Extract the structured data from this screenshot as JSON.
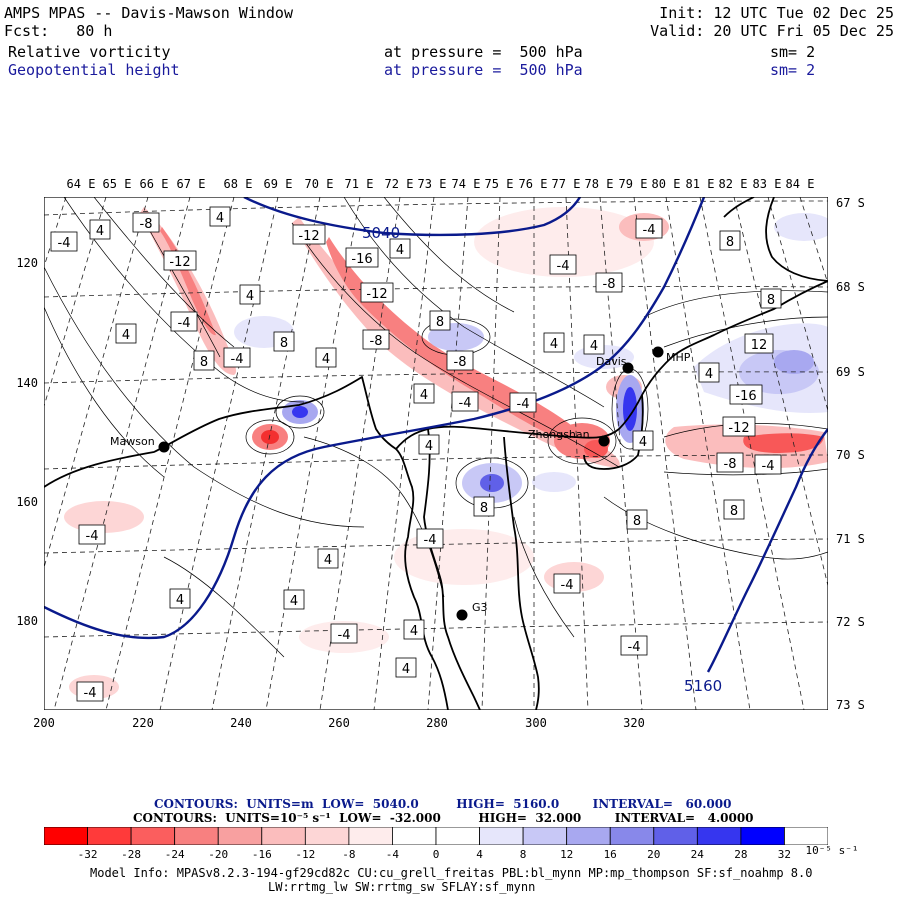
{
  "header": {
    "title": "AMPS MPAS -- Davis-Mawson Window",
    "forecast": "Fcst:   80 h",
    "init": "Init: 12 UTC Tue 02 Dec 25",
    "valid": "Valid: 20 UTC Fri 05 Dec 25",
    "field1": {
      "name": "Relative vorticity",
      "level": "at pressure =  500 hPa",
      "smooth": "sm= 2"
    },
    "field2": {
      "name": "Geopotential height",
      "level": "at pressure =  500 hPa",
      "smooth": "sm= 2"
    }
  },
  "axes": {
    "top_longitudes": [
      "64 E",
      "65 E",
      "66 E",
      "67 E",
      "68 E",
      "69 E",
      "70 E",
      "71 E",
      "72 E",
      "73 E",
      "74 E",
      "75 E",
      "76 E",
      "77 E",
      "78 E",
      "79 E",
      "80 E",
      "81 E",
      "82 E",
      "83 E",
      "84 E"
    ],
    "right_latitudes": [
      "67 S",
      "68 S",
      "69 S",
      "70 S",
      "71 S",
      "72 S",
      "73 S"
    ],
    "bottom_ticks": [
      "200",
      "220",
      "240",
      "260",
      "280",
      "300",
      "320"
    ],
    "left_ticks": [
      "120",
      "140",
      "160",
      "180"
    ]
  },
  "stations": [
    {
      "name": "Mawson",
      "lon": 62.9,
      "lat": -67.6
    },
    {
      "name": "Davis",
      "lon": 77.97,
      "lat": -68.58
    },
    {
      "name": "Zhongshan",
      "lon": 76.37,
      "lat": -69.37
    },
    {
      "name": "G3",
      "lon": 76.9,
      "lat": -71.8
    },
    {
      "name": "MHP",
      "lon": 79.1,
      "lat": -68.9
    }
  ],
  "height_labels": [
    "5040",
    "5160"
  ],
  "vort_labels": [
    "-4",
    "4",
    "-8",
    "4",
    "-12",
    "4",
    "-4",
    "4",
    "8",
    "-4",
    "8",
    "4",
    "-12",
    "-16",
    "4",
    "-12",
    "8",
    "-8",
    "-8",
    "4",
    "-4",
    "4",
    "-4",
    "4",
    "-4",
    "-8",
    "-4",
    "8",
    "8",
    "12",
    "4",
    "-16",
    "4",
    "-12",
    "-8",
    "-4",
    "4",
    "8",
    "8",
    "8",
    "-4",
    "-4",
    "4",
    "-4",
    "-4",
    "4",
    "4",
    "-4",
    "4",
    "4",
    "-4"
  ],
  "contour_info": {
    "height": "CONTOURS:  UNITS=m  LOW=  5040.0         HIGH=  5160.0        INTERVAL=   60.000",
    "vorticity": "CONTOURS:  UNITS=10⁻⁵ s⁻¹  LOW=  -32.000         HIGH=  32.000        INTERVAL=   4.0000"
  },
  "colorbar": {
    "labels": [
      "-32",
      "-28",
      "-24",
      "-20",
      "-16",
      "-12",
      "-8",
      "-4",
      "0",
      "4",
      "8",
      "12",
      "16",
      "20",
      "24",
      "28",
      "32"
    ],
    "unit": "10⁻⁵ s⁻¹",
    "colors": [
      "#ff0000",
      "#ff3a3a",
      "#fb5e5e",
      "#f88080",
      "#f8a0a0",
      "#fbbdbd",
      "#fdd6d6",
      "#feecec",
      "#ffffff",
      "#ffffff",
      "#e6e6fb",
      "#c8c8f6",
      "#a8a8f0",
      "#8888ea",
      "#6060e8",
      "#3636ef",
      "#0000ff"
    ]
  },
  "model_info": {
    "line1": "Model Info: MPASv8.2.3-194-gf29cd82c CU:cu_grell_freitas PBL:bl_mynn MP:mp_thompson SF:sf_noahmp 8.0",
    "line2": "LW:rrtmg_lw SW:rrtmg_sw SFLAY:sf_mynn"
  },
  "colors": {
    "geopotential": "#0a1a8c",
    "field2_text": "#1a1a9c",
    "coast": "#000000"
  }
}
